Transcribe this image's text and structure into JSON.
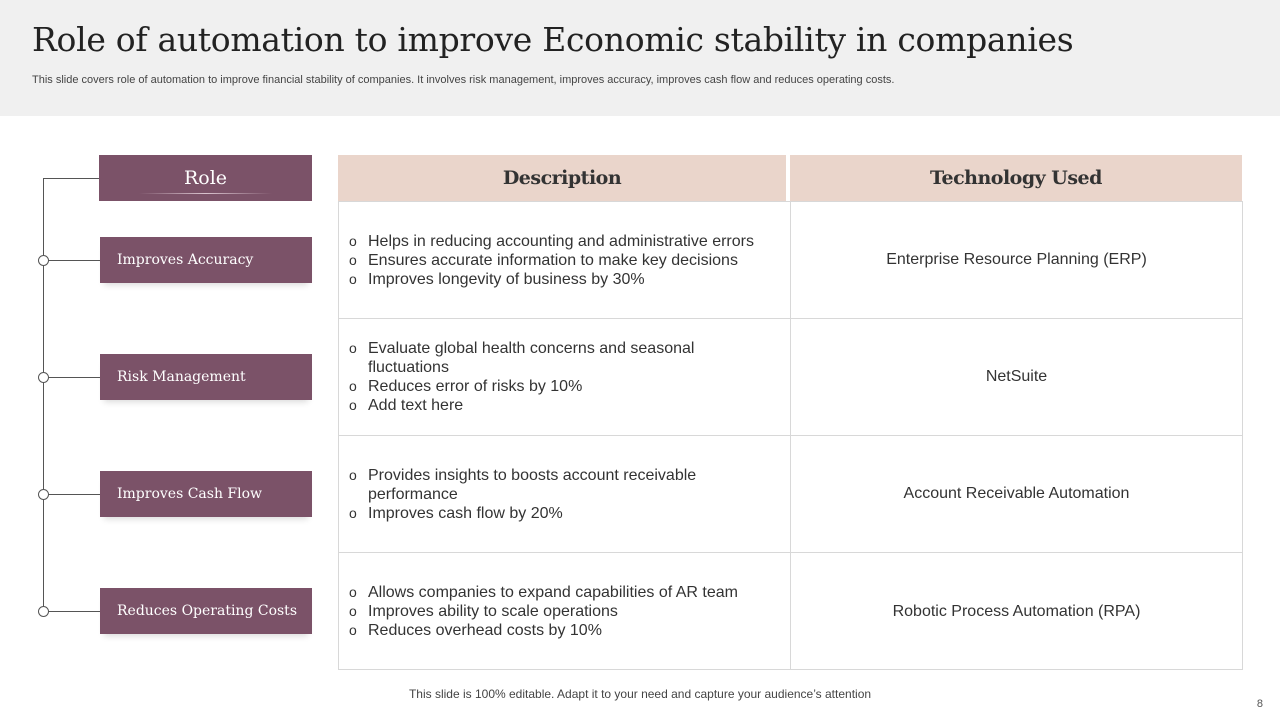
{
  "title": "Role of automation to improve Economic stability in companies",
  "subtitle": "This slide covers role of automation to improve financial stability of companies. It involves  risk management, improves accuracy, improves cash flow and reduces operating costs.",
  "headers": {
    "role": "Role",
    "description": "Description",
    "technology": "Technology Used"
  },
  "rows": [
    {
      "role": "Improves  Accuracy",
      "bullets": [
        "Helps in reducing accounting and administrative errors",
        "Ensures accurate information to make key decisions",
        "Improves longevity of business by 30%"
      ],
      "technology": "Enterprise Resource Planning (ERP)"
    },
    {
      "role": "Risk Management",
      "bullets": [
        "Evaluate global health concerns and seasonal fluctuations",
        "Reduces error of risks by 10%",
        "Add text here"
      ],
      "technology": "NetSuite"
    },
    {
      "role": "Improves Cash Flow",
      "bullets": [
        "Provides insights to boosts account receivable performance",
        "Improves cash flow by 20%"
      ],
      "technology": "Account Receivable Automation"
    },
    {
      "role": "Reduces Operating Costs",
      "bullets": [
        "Allows companies to expand capabilities of AR team",
        "Improves ability to scale operations",
        "Reduces overhead costs by 10%"
      ],
      "technology": "Robotic Process Automation (RPA)"
    }
  ],
  "bullet_marker": "o",
  "footer": "This slide is 100% editable. Adapt it to your need and capture your audience’s attention",
  "page_number": "8",
  "colors": {
    "role_fill": "#7b5268",
    "header_fill": "#ead5cb",
    "top_band": "#f0f0f0"
  }
}
